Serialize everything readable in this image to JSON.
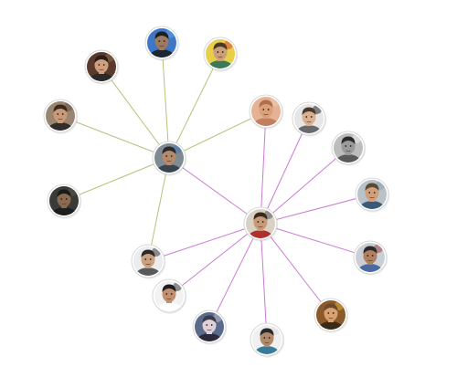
{
  "colors": {
    "background": "#ffffff",
    "edge_hub_1": "#b5c27a",
    "edge_hub_2": "#cc7ad6",
    "node_border": "#d8d8d8"
  },
  "nodes": [
    {
      "id": "hub-1",
      "avatar": {
        "bg": "#7f8a93",
        "skin": "#b58a6c",
        "hair": "#2a2a2a",
        "shirt": "#3a4450",
        "accent": "#4a78b5"
      }
    },
    {
      "id": "hub-2",
      "avatar": {
        "bg": "#d9d2c4",
        "skin": "#c99a78",
        "hair": "#3a2a1e",
        "shirt": "#b03030",
        "accent": "#5a5a5a"
      }
    },
    {
      "id": "person-1",
      "avatar": {
        "bg": "#3f77c8",
        "skin": "#9b7a60",
        "hair": "#1e1e1e",
        "shirt": "#1e2630",
        "accent": "#5fa0e0"
      }
    },
    {
      "id": "person-2",
      "avatar": {
        "bg": "#e7cf4a",
        "skin": "#c9a07a",
        "hair": "#4a3a2a",
        "shirt": "#3a7a5a",
        "accent": "#d9483b"
      }
    },
    {
      "id": "person-3",
      "avatar": {
        "bg": "#5b3a2e",
        "skin": "#cfa080",
        "hair": "#2a1e16",
        "shirt": "#2a2a2a",
        "accent": "#8a6a50"
      }
    },
    {
      "id": "person-4",
      "avatar": {
        "bg": "#9a8670",
        "skin": "#c99a78",
        "hair": "#3a2a1e",
        "shirt": "#2e2e2e",
        "accent": "#6a5a4a"
      }
    },
    {
      "id": "person-5",
      "avatar": {
        "bg": "#3a3a36",
        "skin": "#8a6a50",
        "hair": "#1a1a1a",
        "shirt": "#1e1e1e",
        "accent": "#5a5a50"
      }
    },
    {
      "id": "person-6",
      "avatar": {
        "bg": "#e6b295",
        "skin": "#d9a07a",
        "hair": "#b07050",
        "shirt": "#c08060",
        "accent": "#f0c8b0"
      }
    },
    {
      "id": "person-7",
      "avatar": {
        "bg": "#e6e6e6",
        "skin": "#d9b090",
        "hair": "#4a3a2a",
        "shirt": "#6a6a6a",
        "accent": "#2a2a2a"
      }
    },
    {
      "id": "person-8",
      "avatar": {
        "bg": "#bdbdbd",
        "skin": "#9a9a9a",
        "hair": "#2a2a2a",
        "shirt": "#5a5a5a",
        "accent": "#eeeeee"
      }
    },
    {
      "id": "person-9",
      "avatar": {
        "bg": "#b8c2c8",
        "skin": "#d0a07a",
        "hair": "#5a4a30",
        "shirt": "#3a5a7a",
        "accent": "#8aa0b0"
      }
    },
    {
      "id": "person-10",
      "avatar": {
        "bg": "#c9cfd4",
        "skin": "#b08060",
        "hair": "#2a2a2a",
        "shirt": "#4a6aa0",
        "accent": "#a04040"
      }
    },
    {
      "id": "person-11",
      "avatar": {
        "bg": "#8a5a2a",
        "skin": "#d9a070",
        "hair": "#6a4a2a",
        "shirt": "#3a2a1a",
        "accent": "#e0b040"
      }
    },
    {
      "id": "person-12",
      "avatar": {
        "bg": "#f0f0f0",
        "skin": "#b08a6a",
        "hair": "#2a2a2a",
        "shirt": "#3a7a9a",
        "accent": "#dddddd"
      }
    },
    {
      "id": "person-13",
      "avatar": {
        "bg": "#5a6a8a",
        "skin": "#e0d0d8",
        "hair": "#3a3a4a",
        "shirt": "#2a2a3a",
        "accent": "#c0c0d0"
      }
    },
    {
      "id": "person-14",
      "avatar": {
        "bg": "#f2f2f2",
        "skin": "#c09070",
        "hair": "#1e1e1e",
        "shirt": "#ffffff",
        "accent": "#3a3a3a"
      }
    },
    {
      "id": "person-15",
      "avatar": {
        "bg": "#ececec",
        "skin": "#c9a080",
        "hair": "#2a2a2a",
        "shirt": "#5a5a5a",
        "accent": "#3a3a3a"
      }
    }
  ],
  "edges": [
    {
      "from": "hub-1",
      "to": "person-1",
      "color_key": "edge_hub_1"
    },
    {
      "from": "hub-1",
      "to": "person-2",
      "color_key": "edge_hub_1"
    },
    {
      "from": "hub-1",
      "to": "person-3",
      "color_key": "edge_hub_1"
    },
    {
      "from": "hub-1",
      "to": "person-4",
      "color_key": "edge_hub_1"
    },
    {
      "from": "hub-1",
      "to": "person-5",
      "color_key": "edge_hub_1"
    },
    {
      "from": "hub-1",
      "to": "person-6",
      "color_key": "edge_hub_1"
    },
    {
      "from": "hub-1",
      "to": "person-15",
      "color_key": "edge_hub_1"
    },
    {
      "from": "hub-1",
      "to": "hub-2",
      "color_key": "edge_hub_2"
    },
    {
      "from": "hub-2",
      "to": "person-6",
      "color_key": "edge_hub_2"
    },
    {
      "from": "hub-2",
      "to": "person-7",
      "color_key": "edge_hub_2"
    },
    {
      "from": "hub-2",
      "to": "person-8",
      "color_key": "edge_hub_2"
    },
    {
      "from": "hub-2",
      "to": "person-9",
      "color_key": "edge_hub_2"
    },
    {
      "from": "hub-2",
      "to": "person-10",
      "color_key": "edge_hub_2"
    },
    {
      "from": "hub-2",
      "to": "person-11",
      "color_key": "edge_hub_2"
    },
    {
      "from": "hub-2",
      "to": "person-12",
      "color_key": "edge_hub_2"
    },
    {
      "from": "hub-2",
      "to": "person-13",
      "color_key": "edge_hub_2"
    },
    {
      "from": "hub-2",
      "to": "person-14",
      "color_key": "edge_hub_2"
    },
    {
      "from": "hub-2",
      "to": "person-15",
      "color_key": "edge_hub_2"
    }
  ]
}
